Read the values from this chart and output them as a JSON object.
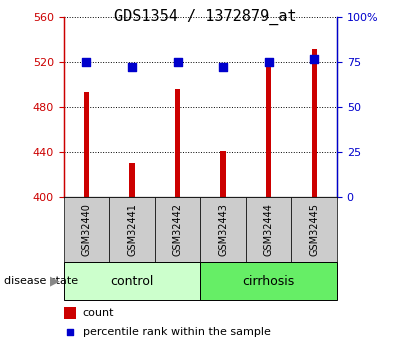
{
  "title": "GDS1354 / 1372879_at",
  "samples": [
    "GSM32440",
    "GSM32441",
    "GSM32442",
    "GSM32443",
    "GSM32444",
    "GSM32445"
  ],
  "counts": [
    493,
    430,
    496,
    441,
    520,
    532
  ],
  "percentile_ranks": [
    75,
    72,
    75,
    72,
    75,
    77
  ],
  "groups": [
    "control",
    "control",
    "control",
    "cirrhosis",
    "cirrhosis",
    "cirrhosis"
  ],
  "ylim_left": [
    400,
    560
  ],
  "ylim_right": [
    0,
    100
  ],
  "yticks_left": [
    400,
    440,
    480,
    520,
    560
  ],
  "yticks_right": [
    0,
    25,
    50,
    75,
    100
  ],
  "bar_color": "#CC0000",
  "dot_color": "#0000CC",
  "control_bg": "#CCFFCC",
  "cirrhosis_bg": "#66EE66",
  "sample_box_bg": "#CCCCCC",
  "bar_width": 0.12,
  "dot_size": 28,
  "left_axis_color": "#CC0000",
  "right_axis_color": "#0000CC",
  "grid_color": "#000000",
  "group_label_fontsize": 9,
  "tick_fontsize": 8,
  "title_fontsize": 11
}
